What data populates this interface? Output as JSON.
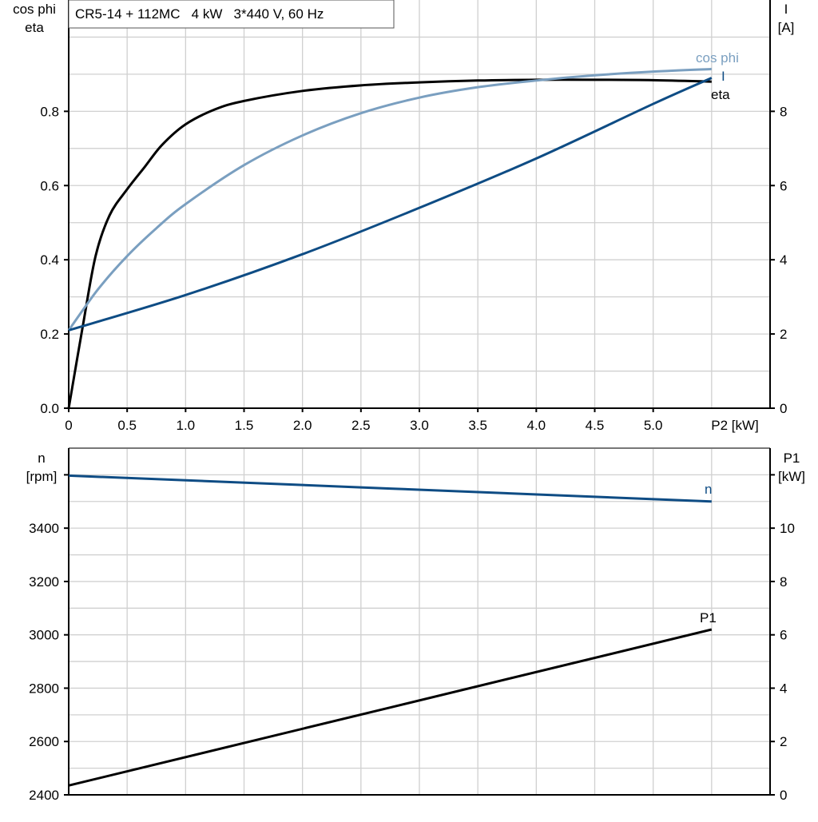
{
  "chart_data": [
    {
      "type": "line",
      "title": "CR5-14 + 112MC   4 kW   3*440 V, 60 Hz",
      "xlabel": "P2 [kW]",
      "ylabel_left": [
        "cos phi",
        "eta"
      ],
      "ylabel_right": [
        "I",
        "[A]"
      ],
      "xlim": [
        0,
        6
      ],
      "ylim_left": [
        0,
        1.1
      ],
      "ylim_right": [
        0,
        11
      ],
      "x_ticks": [
        "0",
        "0.5",
        "1.0",
        "1.5",
        "2.0",
        "2.5",
        "3.0",
        "3.5",
        "4.0",
        "4.5",
        "5.0"
      ],
      "y_ticks_left": [
        "0.0",
        "0.2",
        "0.4",
        "0.6",
        "0.8"
      ],
      "y_ticks_right": [
        "0",
        "2",
        "4",
        "6",
        "8"
      ],
      "grid": true,
      "series": [
        {
          "name": "eta",
          "axis": "left",
          "color": "#000000",
          "x": [
            0,
            0.12,
            0.23,
            0.35,
            0.5,
            0.65,
            0.8,
            1.0,
            1.25,
            1.5,
            2.0,
            2.5,
            3.0,
            3.5,
            4.0,
            4.5,
            5.0,
            5.5
          ],
          "y": [
            0,
            0.22,
            0.41,
            0.52,
            0.59,
            0.65,
            0.71,
            0.765,
            0.805,
            0.828,
            0.855,
            0.87,
            0.878,
            0.883,
            0.885,
            0.885,
            0.884,
            0.88
          ]
        },
        {
          "name": "cos phi",
          "axis": "left",
          "color": "#7a9fc0",
          "x": [
            0,
            0.25,
            0.5,
            0.75,
            1.0,
            1.5,
            2.0,
            2.5,
            3.0,
            3.5,
            4.0,
            4.5,
            5.0,
            5.5
          ],
          "y": [
            0.21,
            0.32,
            0.41,
            0.485,
            0.55,
            0.655,
            0.735,
            0.795,
            0.837,
            0.865,
            0.883,
            0.897,
            0.907,
            0.914
          ]
        },
        {
          "name": "I",
          "axis": "right",
          "color": "#0e4c84",
          "x": [
            0,
            1.0,
            2.0,
            3.0,
            4.0,
            5.0,
            5.5
          ],
          "y": [
            2.1,
            3.05,
            4.15,
            5.4,
            6.73,
            8.2,
            8.9
          ]
        }
      ]
    },
    {
      "type": "line",
      "xlabel": "",
      "ylabel_left": [
        "n",
        "[rpm]"
      ],
      "ylabel_right": [
        "P1",
        "[kW]"
      ],
      "xlim": [
        0,
        6
      ],
      "ylim_left": [
        2400,
        3700
      ],
      "ylim_right": [
        0,
        13
      ],
      "y_ticks_left": [
        "2400",
        "2600",
        "2800",
        "3000",
        "3200",
        "3400"
      ],
      "y_ticks_right": [
        "0",
        "2",
        "4",
        "6",
        "8",
        "10"
      ],
      "grid": true,
      "series": [
        {
          "name": "n",
          "axis": "left",
          "color": "#0e4c84",
          "x": [
            0,
            5.5
          ],
          "y": [
            3597,
            3500
          ]
        },
        {
          "name": "P1",
          "axis": "right",
          "color": "#000000",
          "x": [
            0,
            5.5
          ],
          "y": [
            0.35,
            6.2
          ]
        }
      ]
    }
  ]
}
